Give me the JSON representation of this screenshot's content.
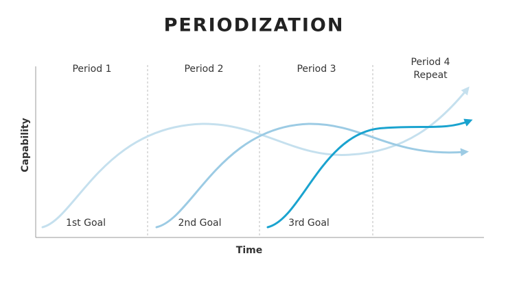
{
  "header": {
    "title": "PERIODIZATION"
  },
  "periods": [
    [
      "Period 1"
    ],
    [
      "Period 2"
    ],
    [
      "Period 3"
    ],
    [
      "Period 4",
      "Repeat"
    ]
  ],
  "goals": [
    "1st Goal",
    "2nd Goal",
    "3rd Goal"
  ],
  "axes": {
    "y_label": "Capability",
    "x_label": "Time"
  }
}
